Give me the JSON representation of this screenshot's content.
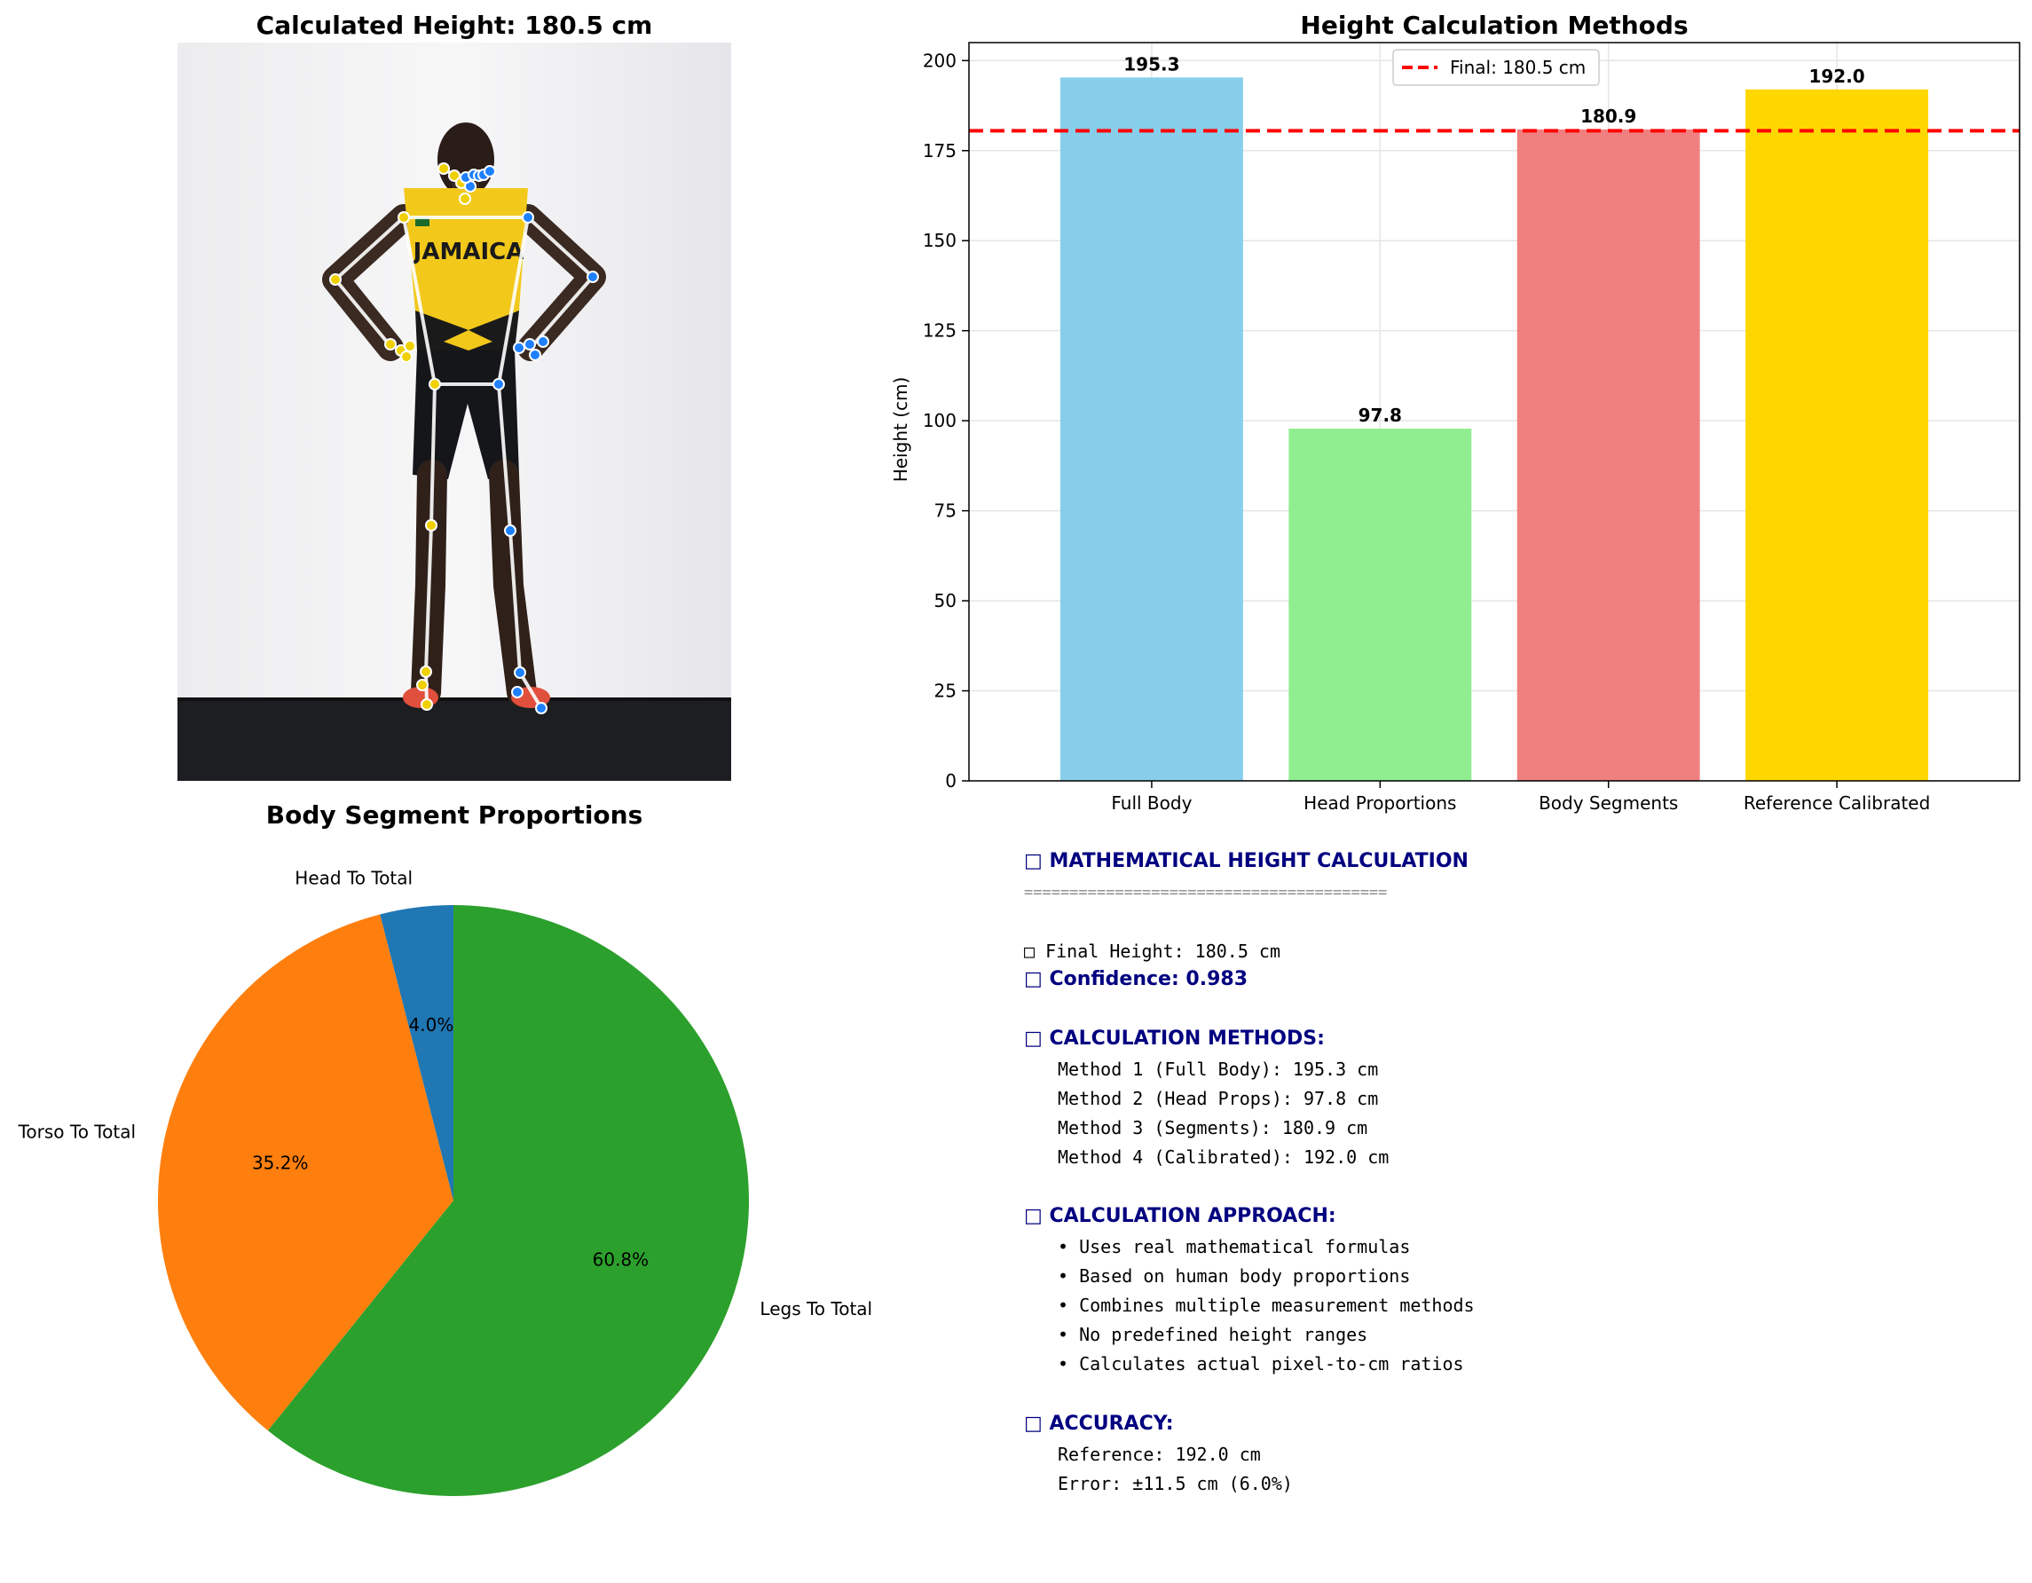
{
  "photo_panel": {
    "title": "Calculated Height: 180.5 cm",
    "jersey_text": "JAMAICA"
  },
  "chart_data": [
    {
      "type": "bar",
      "title": "Height Calculation Methods",
      "xlabel": "",
      "ylabel": "Height (cm)",
      "categories": [
        "Full Body",
        "Head Proportions",
        "Body Segments",
        "Reference Calibrated"
      ],
      "values": [
        195.3,
        97.8,
        180.9,
        192.0
      ],
      "value_labels": [
        "195.3",
        "97.8",
        "180.9",
        "192.0"
      ],
      "colors": [
        "#87ceeb",
        "#90ee90",
        "#f08080",
        "#ffd700"
      ],
      "ylim": [
        0,
        205
      ],
      "yticks": [
        0,
        25,
        50,
        75,
        100,
        125,
        150,
        175,
        200
      ],
      "grid": true,
      "reference_line": {
        "value": 180.5,
        "label": "Final: 180.5 cm",
        "color": "#ff0000",
        "style": "dashed"
      },
      "legend_position": "top-center"
    },
    {
      "type": "pie",
      "title": "Body Segment Proportions",
      "labels": [
        "Head To Total",
        "Torso To Total",
        "Legs To Total"
      ],
      "values": [
        4.0,
        35.2,
        60.8
      ],
      "pct_labels": [
        "4.0%",
        "35.2%",
        "60.8%"
      ],
      "colors": [
        "#1f77b4",
        "#ff7f0e",
        "#2ca02c"
      ]
    }
  ],
  "summary": {
    "title": "□ MATHEMATICAL HEIGHT CALCULATION",
    "separator": "========================================",
    "final_height": "□ Final Height: 180.5 cm",
    "confidence": "□ Confidence: 0.983",
    "methods_head": "□ CALCULATION METHODS:",
    "methods": [
      "Method 1 (Full Body): 195.3 cm",
      "Method 2 (Head Props): 97.8 cm",
      "Method 3 (Segments): 180.9 cm",
      "Method 4 (Calibrated): 192.0 cm"
    ],
    "approach_head": "□ CALCULATION APPROACH:",
    "approach": [
      "• Uses real mathematical formulas",
      "• Based on human body proportions",
      "• Combines multiple measurement methods",
      "• No predefined height ranges",
      "• Calculates actual pixel-to-cm ratios"
    ],
    "accuracy_head": "□ ACCURACY:",
    "accuracy": [
      "Reference: 192.0 cm",
      "Error: ±11.5 cm (6.0%)"
    ]
  }
}
